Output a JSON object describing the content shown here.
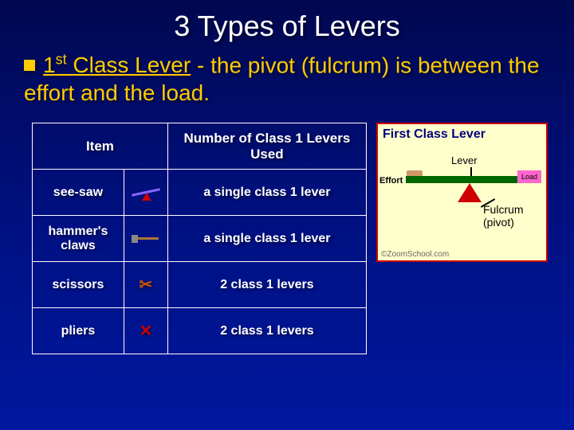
{
  "title": "3 Types of Levers",
  "subtext": {
    "ordinal": "1",
    "suffix": "st",
    "emphasis": " Class Lever",
    "rest": " - the pivot (fulcrum) is between the effort and the load."
  },
  "table": {
    "headers": [
      "Item",
      "Number of Class 1 Levers Used"
    ],
    "rows": [
      {
        "item": "see-saw",
        "icon": "seesaw",
        "desc": "a single class 1 lever"
      },
      {
        "item": "hammer's claws",
        "icon": "hammer",
        "desc": "a single class 1 lever"
      },
      {
        "item": "scissors",
        "icon": "scissors",
        "desc": "2 class 1 levers"
      },
      {
        "item": "pliers",
        "icon": "pliers",
        "desc": "2 class 1 levers"
      }
    ]
  },
  "diagram": {
    "title": "First Class Lever",
    "lever_label": "Lever",
    "effort_label": "Effort",
    "load_label": "Load",
    "fulcrum_label": "Fulcrum\n(pivot)",
    "credit": "©ZoomSchool.com",
    "colors": {
      "bg": "#ffffcc",
      "border": "#cc0000",
      "bar": "#006600",
      "fulcrum": "#cc0000",
      "load": "#ff66cc",
      "title": "#000080"
    }
  },
  "colors": {
    "page_bg_top": "#000850",
    "page_bg_bottom": "#0018a0",
    "title": "#ffffff",
    "accent": "#ffcc00",
    "table_border": "#ffffff"
  }
}
